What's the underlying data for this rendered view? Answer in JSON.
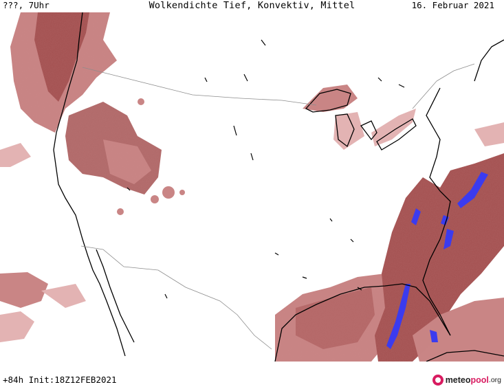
{
  "header": {
    "location_time": "???, 7Uhr",
    "title": "Wolkendichte  Tief, Konvektiv, Mittel",
    "date": "16. Februar 2021"
  },
  "footer": {
    "run_info": "+84h Init:18Z12FEB2021",
    "logo": {
      "part1": "meteo",
      "part2": "pool",
      "part3": ".org"
    }
  },
  "colors": {
    "cloud_light": "#e3b3b3",
    "cloud_mid": "#c98585",
    "cloud_dense": "#a24f4f",
    "convective": "#3b3bef",
    "coastline": "#000000",
    "borders": "#8c8c8c"
  }
}
